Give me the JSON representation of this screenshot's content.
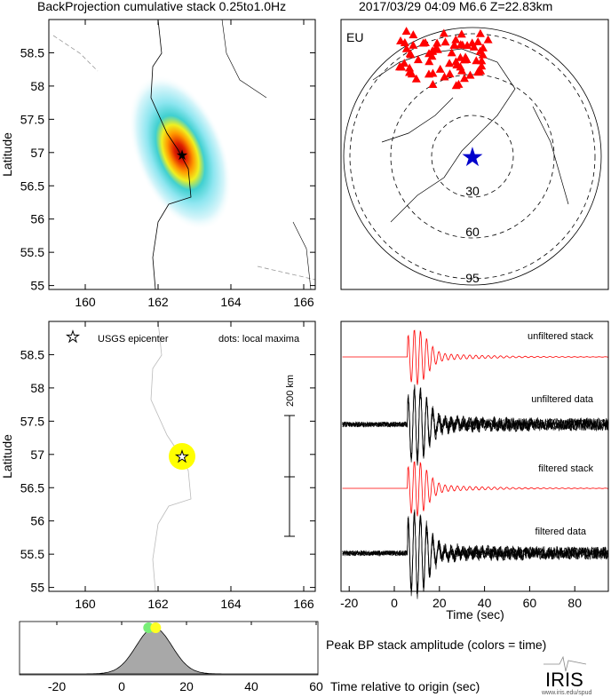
{
  "header": {
    "title_left": "BackProjection cumulative stack 0.25to1.0Hz",
    "title_right": "2017/03/29 04:09  M6.6  Z=22.83km"
  },
  "colors": {
    "stations": "#ff0000",
    "epicenter_star": "#0000cc",
    "max_dot": "#ffff00",
    "trace_stack": "#ff0000",
    "trace_data": "#000000",
    "amp_fill": "#a8a8a8"
  },
  "chart_data": [
    {
      "type": "heatmap",
      "name": "cumulative-stack-map",
      "ylabel": "Latitude",
      "xlim": [
        159,
        166.4
      ],
      "ylim": [
        54.95,
        59
      ],
      "xticks": [
        "160",
        "162",
        "164",
        "166"
      ],
      "yticks": [
        "55",
        "55.5",
        "56",
        "56.5",
        "57",
        "57.5",
        "58",
        "58.5"
      ],
      "peak": {
        "lon": 162.7,
        "lat": 56.93
      }
    },
    {
      "type": "scatter",
      "name": "station-globe",
      "array_label": "EU",
      "ring_labels": [
        "30",
        "60",
        "95"
      ],
      "station_count": 70
    },
    {
      "type": "scatter",
      "name": "local-maxima-map",
      "ylabel": "Latitude",
      "xlim": [
        159,
        166.4
      ],
      "ylim": [
        54.95,
        59
      ],
      "xticks": [
        "160",
        "162",
        "164",
        "166"
      ],
      "yticks": [
        "55",
        "55.5",
        "56",
        "56.5",
        "57",
        "57.5",
        "58",
        "58.5"
      ],
      "legend": {
        "epicenter": "USGS epicenter",
        "dots": "dots: local maxima"
      },
      "scale_bar": "200 km",
      "epicenter": {
        "lon": 162.73,
        "lat": 56.93
      },
      "maxima": [
        {
          "lon": 162.73,
          "lat": 56.93,
          "time": 10.5
        }
      ]
    },
    {
      "type": "line",
      "name": "traces",
      "xlabel": "Time (sec)",
      "xlim": [
        -23,
        95
      ],
      "xticks": [
        "-20",
        "0",
        "20",
        "40",
        "60",
        "80"
      ],
      "series": [
        {
          "name": "unfiltered stack"
        },
        {
          "name": "unfiltered data"
        },
        {
          "name": "filtered stack"
        },
        {
          "name": "filtered data"
        }
      ],
      "onset_time": 6,
      "peak_time": 10
    },
    {
      "type": "area",
      "name": "peak-bp-amplitude",
      "title": "Peak BP stack amplitude (colors = time)",
      "xlabel": "Time relative to origin (sec)",
      "xlim": [
        -29,
        60
      ],
      "xticks": [
        "-20",
        "0",
        "20",
        "40",
        "60"
      ],
      "peak_time": 10,
      "sigma": 5.5,
      "dots": [
        {
          "time": 8.3,
          "color": "#77ee77"
        },
        {
          "time": 10.5,
          "color": "#ffff22"
        }
      ]
    }
  ],
  "logo": {
    "name": "IRIS",
    "url": "www.iris.edu/spud"
  }
}
